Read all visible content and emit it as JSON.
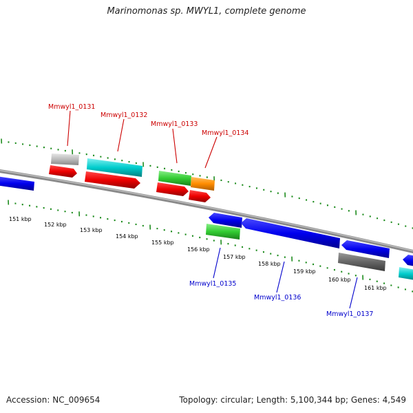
{
  "title": "Marinomonas sp. MWYL1, complete genome",
  "footer": {
    "accession": "Accession: NC_009654",
    "summary": "Topology: circular; Length: 5,100,344 bp; Genes: 4,549"
  },
  "kbp_labels": [
    "151 kbp",
    "152 kbp",
    "153 kbp",
    "154 kbp",
    "155 kbp",
    "156 kbp",
    "157 kbp",
    "158 kbp",
    "159 kbp",
    "160 kbp",
    "161 kbp"
  ],
  "genes": {
    "g0131": "Mmwyl1_0131",
    "g0132": "Mmwyl1_0132",
    "g0133": "Mmwyl1_0133",
    "g0134": "Mmwyl1_0134",
    "g0135": "Mmwyl1_0135",
    "g0136": "Mmwyl1_0136",
    "g0137": "Mmwyl1_0137"
  },
  "colors": {
    "tick": "#1e8c1e",
    "backbone": "#808080",
    "label_top": "#cc0000",
    "label_bottom": "#0000cc",
    "gene_blue": "#0000ee",
    "gene_red": "#ee0000",
    "gene_cyan": "#00cccc",
    "gene_green": "#33cc33",
    "gene_orange": "#ff8c00",
    "gene_gray": "#bbbbbb",
    "gene_darkgray": "#666666"
  }
}
